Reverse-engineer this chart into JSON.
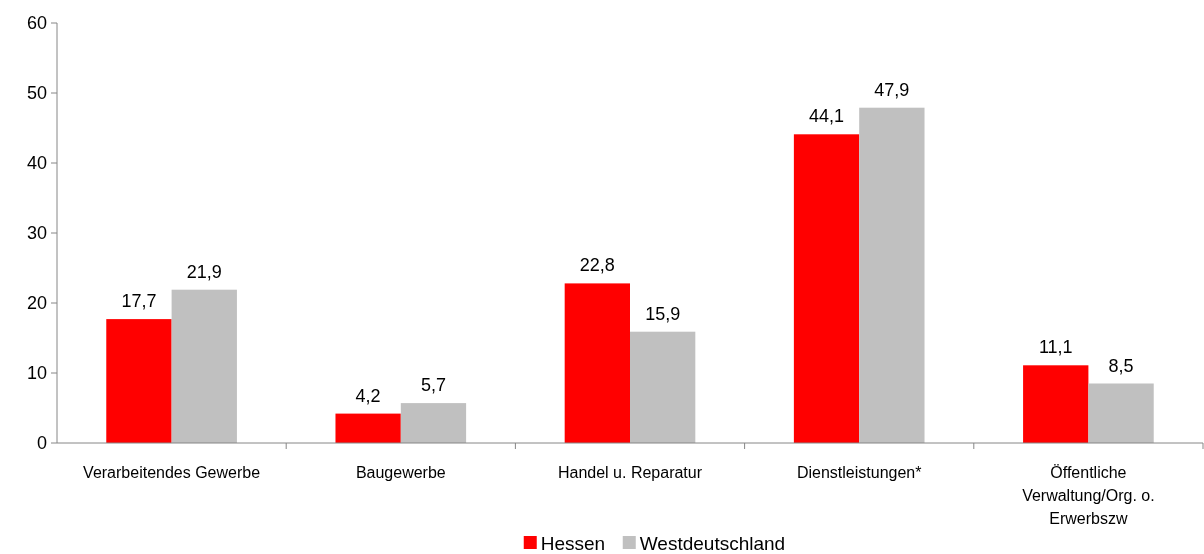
{
  "chart_data": {
    "type": "bar",
    "categories": [
      "Verarbeitendes Gewerbe",
      "Baugewerbe",
      "Handel u. Reparatur",
      "Dienstleistungen*",
      "Öffentliche Verwaltung/Org. o. Erwerbszw"
    ],
    "series": [
      {
        "name": "Hessen",
        "color": "#ff0000",
        "values": [
          17.7,
          4.2,
          22.8,
          44.1,
          11.1
        ],
        "value_labels": [
          "17,7",
          "4,2",
          "22,8",
          "44,1",
          "11,1"
        ]
      },
      {
        "name": "Westdeutschland",
        "color": "#c0c0c0",
        "values": [
          21.9,
          5.7,
          15.9,
          47.9,
          8.5
        ],
        "value_labels": [
          "21,9",
          "5,7",
          "15,9",
          "47,9",
          "8,5"
        ]
      }
    ],
    "ylim": [
      0,
      60
    ],
    "yticks": [
      0,
      10,
      20,
      30,
      40,
      50,
      60
    ],
    "grid": false,
    "legend": "bottom"
  }
}
